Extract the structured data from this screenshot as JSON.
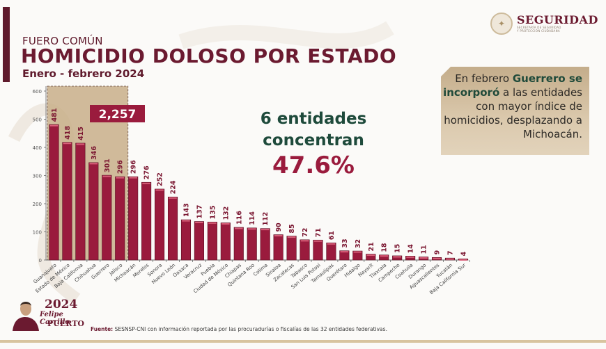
{
  "header": {
    "subtitle": "FUERO COMÚN",
    "title": "HOMICIDIO DOLOSO POR ESTADO",
    "period": "Enero - febrero 2024"
  },
  "logo": {
    "name": "SEGURIDAD",
    "line1": "SECRETARÍA DE SEGURIDAD",
    "line2": "Y PROTECCIÓN CIUDADANA"
  },
  "callout": {
    "part1": "En febrero ",
    "bold1": "Guerrero se incorporó",
    "part2": " a las entidades con mayor índice de homicidios, desplazando a Michoacán."
  },
  "highlight": {
    "line1": "6 entidades",
    "line2": "concentran",
    "percent": "47.6%",
    "total_label": "2,257",
    "group_size": 6
  },
  "footer": {
    "logo_year": "2024",
    "logo_name": "Felipe Carrillo",
    "logo_surname": "PUERTO",
    "source_label": "Fuente:",
    "source_text": " SESNSP-CNI con información reportada por las procuradurías o fiscalías de las 32 entidades federativas."
  },
  "colors": {
    "bar": "#9a1b3d",
    "bar_top": "#d9607a",
    "highlight_bg": "#c9b08a",
    "total_box": "#9a1b3d",
    "title": "#6b1a30",
    "green": "#1e4a3b"
  },
  "chart_data": {
    "type": "bar",
    "title": "HOMICIDIO DOLOSO POR ESTADO",
    "xlabel": "",
    "ylabel": "",
    "ylim": [
      0,
      600
    ],
    "yticks": [
      0,
      100,
      200,
      300,
      400,
      500,
      600
    ],
    "grid": false,
    "categories": [
      "Guanajuato",
      "Estado de México",
      "Baja California",
      "Chihuahua",
      "Guerrero",
      "Jalisco",
      "Michoacán",
      "Morelos",
      "Sonora",
      "Nuevo León",
      "Oaxaca",
      "Veracruz",
      "Puebla",
      "Ciudad de México",
      "Chiapas",
      "Quintana Roo",
      "Colima",
      "Sinaloa",
      "Zacatecas",
      "Tabasco",
      "San Luis Potosí",
      "Tamaulipas",
      "Querétaro",
      "Hidalgo",
      "Nayarit",
      "Tlaxcala",
      "Campeche",
      "Coahuila",
      "Durango",
      "Aguascalientes",
      "Yucatán",
      "Baja California Sur"
    ],
    "values": [
      481,
      418,
      415,
      346,
      301,
      296,
      296,
      276,
      252,
      224,
      143,
      137,
      135,
      132,
      116,
      114,
      112,
      90,
      85,
      72,
      71,
      61,
      33,
      32,
      21,
      18,
      15,
      14,
      11,
      9,
      7,
      4
    ]
  }
}
